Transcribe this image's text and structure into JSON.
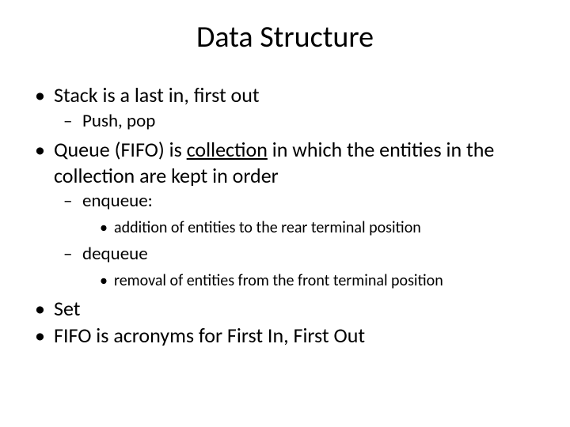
{
  "title": "Data Structure",
  "bullets": {
    "stack_pre": "Stack  is a last in, first out",
    "stack_sub": "Push, pop",
    "queue_pre": "Queue  (FIFO) is ",
    "queue_underlined": "collection",
    "queue_post": " in which the entities in the collection are kept in order",
    "enqueue": " enqueue:",
    "enqueue_detail": "addition of entities to the rear terminal position",
    "dequeue": "dequeue",
    "dequeue_detail": "removal of entities from the front terminal position",
    "set": "Set",
    "fifo": "FIFO is acronyms for First In, First Out"
  },
  "markers": {
    "l1": "•",
    "l2": "–",
    "l3": "•"
  },
  "style": {
    "background_color": "#ffffff",
    "text_color": "#000000",
    "title_fontsize": 38,
    "l1_fontsize": 26,
    "l2_fontsize": 23,
    "l3_fontsize": 20,
    "font_family": "Calibri"
  }
}
